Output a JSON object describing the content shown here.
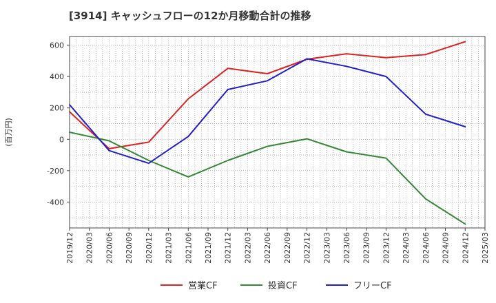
{
  "chart_data": {
    "type": "line",
    "title": "[3914]  キャッシュフローの12か月移動合計の推移",
    "ylabel": "(百万円)",
    "xlabel": "",
    "x_ticks": [
      "2019/12",
      "2020/03",
      "2020/06",
      "2020/09",
      "2020/12",
      "2021/03",
      "2021/06",
      "2021/09",
      "2021/12",
      "2022/03",
      "2022/06",
      "2022/09",
      "2022/12",
      "2023/03",
      "2023/06",
      "2023/09",
      "2023/12",
      "2024/03",
      "2024/06",
      "2024/09",
      "2024/12",
      "2025/03"
    ],
    "y_ticks": [
      600,
      400,
      200,
      0,
      -200,
      -400
    ],
    "y_tick_labels": [
      "600",
      "400",
      "200",
      "0",
      "-200",
      "-400"
    ],
    "ylim": [
      -565,
      655
    ],
    "grid": true,
    "legend_position": "bottom",
    "series": [
      {
        "name": "営業CF",
        "color": "#dd2222",
        "x": [
          "2019/12",
          "2020/06",
          "2020/12",
          "2021/06",
          "2021/12",
          "2022/06",
          "2022/12",
          "2023/06",
          "2023/12",
          "2024/06",
          "2024/12"
        ],
        "values": [
          175,
          -60,
          -18,
          258,
          452,
          418,
          510,
          545,
          520,
          540,
          622
        ]
      },
      {
        "name": "投資CF",
        "color": "#338833",
        "x": [
          "2019/12",
          "2020/06",
          "2020/12",
          "2021/06",
          "2021/12",
          "2022/06",
          "2022/12",
          "2023/06",
          "2023/12",
          "2024/06",
          "2024/12"
        ],
        "values": [
          45,
          -10,
          -135,
          -240,
          -135,
          -45,
          3,
          -80,
          -120,
          -380,
          -540
        ]
      },
      {
        "name": "フリーCF",
        "color": "#1f1fcc",
        "x": [
          "2019/12",
          "2020/06",
          "2020/12",
          "2021/06",
          "2021/12",
          "2022/06",
          "2022/12",
          "2023/06",
          "2023/12",
          "2024/06",
          "2024/12"
        ],
        "values": [
          220,
          -72,
          -153,
          18,
          317,
          373,
          513,
          465,
          400,
          160,
          80
        ]
      }
    ]
  }
}
